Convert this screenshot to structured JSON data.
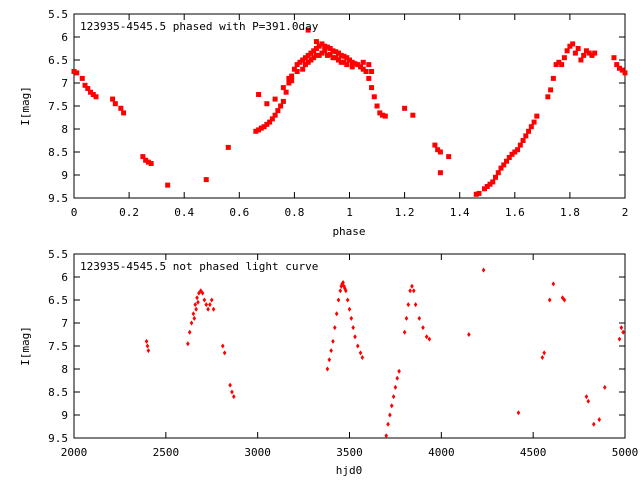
{
  "chart_data": [
    {
      "type": "scatter",
      "title": "123935-4545.5 phased with P=391.0day",
      "xlabel": "phase",
      "ylabel": "I[mag]",
      "xlim": [
        0,
        2
      ],
      "ylim": [
        9.5,
        5.5
      ],
      "y_inverted": true,
      "x_ticks": [
        "0",
        "0.2",
        "0.4",
        "0.6",
        "0.8",
        "1",
        "1.2",
        "1.4",
        "1.6",
        "1.8",
        "2"
      ],
      "y_ticks": [
        "5.5",
        "6",
        "6.5",
        "7",
        "7.5",
        "8",
        "8.5",
        "9",
        "9.5"
      ],
      "color": "#ff0000",
      "marker": "filled-square-cross",
      "points": [
        [
          0.0,
          6.75
        ],
        [
          0.01,
          6.78
        ],
        [
          0.03,
          6.9
        ],
        [
          0.04,
          7.05
        ],
        [
          0.05,
          7.12
        ],
        [
          0.06,
          7.2
        ],
        [
          0.07,
          7.25
        ],
        [
          0.08,
          7.3
        ],
        [
          0.14,
          7.35
        ],
        [
          0.15,
          7.45
        ],
        [
          0.17,
          7.55
        ],
        [
          0.18,
          7.65
        ],
        [
          0.25,
          8.6
        ],
        [
          0.26,
          8.68
        ],
        [
          0.27,
          8.72
        ],
        [
          0.28,
          8.75
        ],
        [
          0.34,
          9.22
        ],
        [
          0.48,
          9.1
        ],
        [
          0.56,
          8.4
        ],
        [
          0.66,
          8.05
        ],
        [
          0.67,
          8.02
        ],
        [
          0.68,
          7.98
        ],
        [
          0.69,
          7.95
        ],
        [
          0.7,
          7.9
        ],
        [
          0.71,
          7.85
        ],
        [
          0.72,
          7.78
        ],
        [
          0.73,
          7.7
        ],
        [
          0.74,
          7.6
        ],
        [
          0.75,
          7.5
        ],
        [
          0.76,
          7.4
        ],
        [
          0.77,
          7.2
        ],
        [
          0.78,
          7.0
        ],
        [
          0.79,
          6.85
        ],
        [
          0.8,
          6.7
        ],
        [
          0.81,
          6.6
        ],
        [
          0.82,
          6.55
        ],
        [
          0.83,
          6.5
        ],
        [
          0.84,
          6.45
        ],
        [
          0.85,
          6.4
        ],
        [
          0.86,
          6.35
        ],
        [
          0.87,
          6.3
        ],
        [
          0.88,
          6.25
        ],
        [
          0.89,
          6.2
        ],
        [
          0.9,
          6.15
        ],
        [
          0.91,
          6.2
        ],
        [
          0.92,
          6.22
        ],
        [
          0.93,
          6.25
        ],
        [
          0.94,
          6.3
        ],
        [
          0.95,
          6.32
        ],
        [
          0.96,
          6.35
        ],
        [
          0.97,
          6.4
        ],
        [
          0.98,
          6.42
        ],
        [
          0.99,
          6.45
        ],
        [
          1.0,
          6.5
        ],
        [
          1.01,
          6.55
        ],
        [
          1.02,
          6.58
        ],
        [
          1.03,
          6.6
        ],
        [
          1.04,
          6.65
        ],
        [
          1.05,
          6.7
        ],
        [
          1.06,
          6.75
        ],
        [
          1.07,
          6.9
        ],
        [
          1.08,
          7.1
        ],
        [
          1.09,
          7.3
        ],
        [
          1.1,
          7.5
        ],
        [
          1.11,
          7.65
        ],
        [
          1.12,
          7.7
        ],
        [
          1.13,
          7.72
        ],
        [
          0.84,
          6.6
        ],
        [
          0.86,
          6.5
        ],
        [
          0.88,
          6.4
        ],
        [
          0.9,
          6.35
        ],
        [
          0.92,
          6.4
        ],
        [
          0.94,
          6.45
        ],
        [
          0.96,
          6.5
        ],
        [
          0.98,
          6.55
        ],
        [
          0.79,
          6.95
        ],
        [
          0.81,
          6.75
        ],
        [
          0.83,
          6.7
        ],
        [
          0.85,
          6.55
        ],
        [
          0.87,
          6.45
        ],
        [
          0.89,
          6.4
        ],
        [
          0.67,
          7.25
        ],
        [
          0.7,
          7.45
        ],
        [
          0.73,
          7.35
        ],
        [
          0.76,
          7.1
        ],
        [
          0.78,
          6.9
        ],
        [
          0.85,
          5.85
        ],
        [
          0.88,
          6.1
        ],
        [
          0.91,
          6.3
        ],
        [
          0.93,
          6.38
        ],
        [
          0.95,
          6.45
        ],
        [
          0.97,
          6.55
        ],
        [
          0.99,
          6.6
        ],
        [
          1.01,
          6.65
        ],
        [
          1.05,
          6.55
        ],
        [
          1.07,
          6.6
        ],
        [
          1.08,
          6.75
        ],
        [
          1.2,
          7.55
        ],
        [
          1.23,
          7.7
        ],
        [
          1.31,
          8.35
        ],
        [
          1.32,
          8.45
        ],
        [
          1.33,
          8.5
        ],
        [
          1.33,
          8.95
        ],
        [
          1.36,
          8.6
        ],
        [
          1.46,
          9.42
        ],
        [
          1.47,
          9.4
        ],
        [
          1.49,
          9.3
        ],
        [
          1.5,
          9.25
        ],
        [
          1.51,
          9.2
        ],
        [
          1.52,
          9.15
        ],
        [
          1.53,
          9.05
        ],
        [
          1.54,
          8.95
        ],
        [
          1.55,
          8.85
        ],
        [
          1.56,
          8.78
        ],
        [
          1.57,
          8.7
        ],
        [
          1.58,
          8.62
        ],
        [
          1.59,
          8.55
        ],
        [
          1.6,
          8.5
        ],
        [
          1.61,
          8.45
        ],
        [
          1.62,
          8.35
        ],
        [
          1.63,
          8.25
        ],
        [
          1.64,
          8.15
        ],
        [
          1.65,
          8.05
        ],
        [
          1.66,
          7.95
        ],
        [
          1.67,
          7.85
        ],
        [
          1.68,
          7.72
        ],
        [
          1.72,
          7.3
        ],
        [
          1.73,
          7.15
        ],
        [
          1.74,
          6.9
        ],
        [
          1.75,
          6.6
        ],
        [
          1.76,
          6.55
        ],
        [
          1.77,
          6.6
        ],
        [
          1.78,
          6.45
        ],
        [
          1.79,
          6.3
        ],
        [
          1.8,
          6.2
        ],
        [
          1.81,
          6.15
        ],
        [
          1.82,
          6.35
        ],
        [
          1.83,
          6.25
        ],
        [
          1.84,
          6.5
        ],
        [
          1.85,
          6.4
        ],
        [
          1.86,
          6.3
        ],
        [
          1.87,
          6.35
        ],
        [
          1.88,
          6.4
        ],
        [
          1.89,
          6.35
        ],
        [
          1.96,
          6.45
        ],
        [
          1.97,
          6.6
        ],
        [
          1.98,
          6.68
        ],
        [
          1.99,
          6.72
        ],
        [
          2.0,
          6.78
        ]
      ]
    },
    {
      "type": "scatter",
      "title": "123935-4545.5 not phased light curve",
      "xlabel": "hjd0",
      "ylabel": "I[mag]",
      "xlim": [
        2000,
        5000
      ],
      "ylim": [
        9.5,
        5.5
      ],
      "y_inverted": true,
      "x_ticks": [
        "2000",
        "2500",
        "3000",
        "3500",
        "4000",
        "4500",
        "5000"
      ],
      "y_ticks": [
        "5.5",
        "6",
        "6.5",
        "7",
        "7.5",
        "8",
        "8.5",
        "9",
        "9.5"
      ],
      "color": "#ff0000",
      "marker": "small-diamond",
      "points": [
        [
          2395,
          7.4
        ],
        [
          2400,
          7.5
        ],
        [
          2405,
          7.6
        ],
        [
          2620,
          7.45
        ],
        [
          2630,
          7.2
        ],
        [
          2640,
          7.0
        ],
        [
          2650,
          6.8
        ],
        [
          2660,
          6.6
        ],
        [
          2670,
          6.45
        ],
        [
          2680,
          6.35
        ],
        [
          2690,
          6.3
        ],
        [
          2700,
          6.35
        ],
        [
          2710,
          6.5
        ],
        [
          2720,
          6.6
        ],
        [
          2730,
          6.7
        ],
        [
          2740,
          6.6
        ],
        [
          2750,
          6.5
        ],
        [
          2760,
          6.7
        ],
        [
          2655,
          6.9
        ],
        [
          2665,
          6.7
        ],
        [
          2675,
          6.55
        ],
        [
          2810,
          7.5
        ],
        [
          2820,
          7.65
        ],
        [
          2850,
          8.35
        ],
        [
          2860,
          8.5
        ],
        [
          2870,
          8.6
        ],
        [
          3380,
          8.0
        ],
        [
          3390,
          7.8
        ],
        [
          3400,
          7.6
        ],
        [
          3410,
          7.4
        ],
        [
          3420,
          7.1
        ],
        [
          3430,
          6.8
        ],
        [
          3440,
          6.5
        ],
        [
          3450,
          6.3
        ],
        [
          3460,
          6.15
        ],
        [
          3470,
          6.2
        ],
        [
          3480,
          6.3
        ],
        [
          3490,
          6.5
        ],
        [
          3500,
          6.7
        ],
        [
          3510,
          6.9
        ],
        [
          3520,
          7.1
        ],
        [
          3530,
          7.3
        ],
        [
          3545,
          7.5
        ],
        [
          3560,
          7.65
        ],
        [
          3570,
          7.75
        ],
        [
          3455,
          6.2
        ],
        [
          3465,
          6.12
        ],
        [
          3475,
          6.25
        ],
        [
          3700,
          9.45
        ],
        [
          3710,
          9.2
        ],
        [
          3720,
          9.0
        ],
        [
          3730,
          8.8
        ],
        [
          3740,
          8.6
        ],
        [
          3750,
          8.4
        ],
        [
          3760,
          8.2
        ],
        [
          3770,
          8.05
        ],
        [
          3800,
          7.2
        ],
        [
          3810,
          6.9
        ],
        [
          3820,
          6.6
        ],
        [
          3830,
          6.3
        ],
        [
          3840,
          6.2
        ],
        [
          3850,
          6.3
        ],
        [
          3860,
          6.6
        ],
        [
          3880,
          6.9
        ],
        [
          3900,
          7.1
        ],
        [
          3920,
          7.3
        ],
        [
          3935,
          7.35
        ],
        [
          4150,
          7.25
        ],
        [
          4230,
          5.85
        ],
        [
          4420,
          8.95
        ],
        [
          4550,
          7.75
        ],
        [
          4560,
          7.65
        ],
        [
          4590,
          6.5
        ],
        [
          4610,
          6.15
        ],
        [
          4660,
          6.45
        ],
        [
          4670,
          6.5
        ],
        [
          4790,
          8.6
        ],
        [
          4800,
          8.7
        ],
        [
          4830,
          9.2
        ],
        [
          4860,
          9.1
        ],
        [
          4890,
          8.4
        ],
        [
          4970,
          7.35
        ],
        [
          4980,
          7.1
        ],
        [
          4990,
          7.2
        ]
      ]
    }
  ]
}
